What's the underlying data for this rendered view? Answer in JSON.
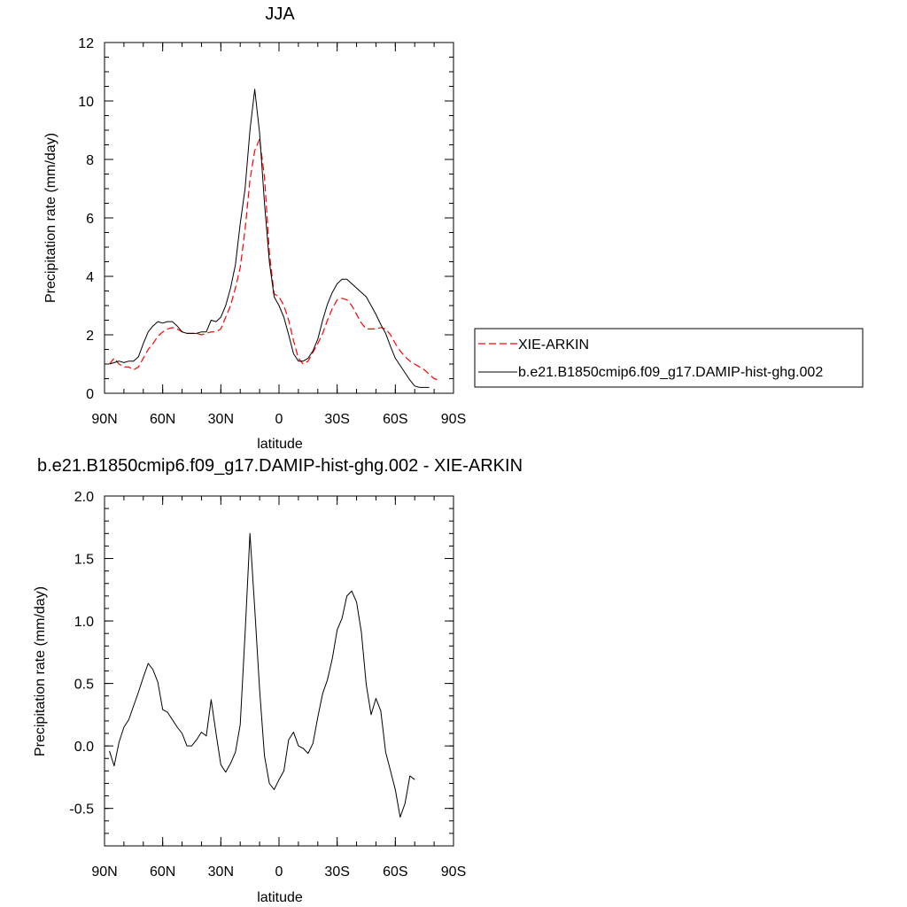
{
  "chart_data": [
    {
      "type": "line",
      "title": "JJA",
      "xlabel": "latitude",
      "ylabel": "Precipitation rate (mm/day)",
      "xlim": [
        90,
        -90
      ],
      "ylim": [
        0,
        12
      ],
      "x_ticks": [
        90,
        60,
        30,
        0,
        -30,
        -60,
        -90
      ],
      "x_tick_labels": [
        "90N",
        "60N",
        "30N",
        "0",
        "30S",
        "60S",
        "90S"
      ],
      "y_ticks": [
        0,
        2,
        4,
        6,
        8,
        10,
        12
      ],
      "y_tick_labels": [
        "0",
        "2",
        "4",
        "6",
        "8",
        "10",
        "12"
      ],
      "grid": false,
      "legend_position": "outside-right",
      "series": [
        {
          "name": "XIE-ARKIN",
          "color": "#ff0000",
          "style": "dashed",
          "points": [
            [
              87.5,
              1.0
            ],
            [
              85,
              1.2
            ],
            [
              82.5,
              1.0
            ],
            [
              80,
              0.9
            ],
            [
              77.5,
              0.9
            ],
            [
              75,
              0.8
            ],
            [
              72.5,
              0.9
            ],
            [
              70,
              1.2
            ],
            [
              67.5,
              1.5
            ],
            [
              65,
              1.7
            ],
            [
              62.5,
              1.95
            ],
            [
              60,
              2.1
            ],
            [
              57.5,
              2.2
            ],
            [
              55,
              2.25
            ],
            [
              52.5,
              2.2
            ],
            [
              50,
              2.1
            ],
            [
              47.5,
              2.05
            ],
            [
              45,
              2.05
            ],
            [
              42.5,
              2.05
            ],
            [
              40,
              2.0
            ],
            [
              37.5,
              2.05
            ],
            [
              35,
              2.1
            ],
            [
              32.5,
              2.1
            ],
            [
              30,
              2.2
            ],
            [
              27.5,
              2.6
            ],
            [
              25,
              3.0
            ],
            [
              22.5,
              3.6
            ],
            [
              20,
              4.3
            ],
            [
              17.5,
              5.6
            ],
            [
              15,
              7.3
            ],
            [
              12.5,
              8.3
            ],
            [
              10,
              8.7
            ],
            [
              7.5,
              7.4
            ],
            [
              5,
              4.8
            ],
            [
              2.5,
              3.4
            ],
            [
              0,
              3.3
            ],
            [
              -2.5,
              3.0
            ],
            [
              -5,
              2.5
            ],
            [
              -7.5,
              1.8
            ],
            [
              -10,
              1.2
            ],
            [
              -12.5,
              1.0
            ],
            [
              -15,
              1.1
            ],
            [
              -17.5,
              1.4
            ],
            [
              -20,
              1.7
            ],
            [
              -22.5,
              2.05
            ],
            [
              -25,
              2.5
            ],
            [
              -27.5,
              2.9
            ],
            [
              -30,
              3.2
            ],
            [
              -32.5,
              3.25
            ],
            [
              -35,
              3.2
            ],
            [
              -37.5,
              3.0
            ],
            [
              -40,
              2.7
            ],
            [
              -42.5,
              2.4
            ],
            [
              -45,
              2.2
            ],
            [
              -47.5,
              2.2
            ],
            [
              -50,
              2.2
            ],
            [
              -52.5,
              2.25
            ],
            [
              -55,
              2.2
            ],
            [
              -57.5,
              2.0
            ],
            [
              -60,
              1.7
            ],
            [
              -62.5,
              1.45
            ],
            [
              -65,
              1.25
            ],
            [
              -67.5,
              1.1
            ],
            [
              -70,
              1.0
            ],
            [
              -72.5,
              0.9
            ],
            [
              -75,
              0.8
            ],
            [
              -77.5,
              0.65
            ],
            [
              -80,
              0.5
            ],
            [
              -82.5,
              0.45
            ]
          ]
        },
        {
          "name": "b.e21.B1850cmip6.f09_g17.DAMIP-hist-ghg.002",
          "color": "#000000",
          "style": "solid",
          "points": [
            [
              87.5,
              1.0
            ],
            [
              85,
              1.05
            ],
            [
              82.5,
              1.1
            ],
            [
              80,
              1.05
            ],
            [
              77.5,
              1.1
            ],
            [
              75,
              1.1
            ],
            [
              72.5,
              1.25
            ],
            [
              70,
              1.7
            ],
            [
              67.5,
              2.1
            ],
            [
              65,
              2.3
            ],
            [
              62.5,
              2.45
            ],
            [
              60,
              2.4
            ],
            [
              57.5,
              2.45
            ],
            [
              55,
              2.45
            ],
            [
              52.5,
              2.3
            ],
            [
              50,
              2.1
            ],
            [
              47.5,
              2.05
            ],
            [
              45,
              2.05
            ],
            [
              42.5,
              2.05
            ],
            [
              40,
              2.1
            ],
            [
              37.5,
              2.1
            ],
            [
              35,
              2.5
            ],
            [
              32.5,
              2.45
            ],
            [
              30,
              2.6
            ],
            [
              27.5,
              3.0
            ],
            [
              25,
              3.6
            ],
            [
              22.5,
              4.4
            ],
            [
              20,
              5.8
            ],
            [
              17.5,
              7.0
            ],
            [
              15,
              9.0
            ],
            [
              12.5,
              10.4
            ],
            [
              10,
              8.9
            ],
            [
              7.5,
              6.5
            ],
            [
              5,
              4.5
            ],
            [
              2.5,
              3.3
            ],
            [
              0,
              3.0
            ],
            [
              -2.5,
              2.6
            ],
            [
              -5,
              2.0
            ],
            [
              -7.5,
              1.35
            ],
            [
              -10,
              1.1
            ],
            [
              -12.5,
              1.1
            ],
            [
              -15,
              1.2
            ],
            [
              -17.5,
              1.45
            ],
            [
              -20,
              1.85
            ],
            [
              -22.5,
              2.5
            ],
            [
              -25,
              3.05
            ],
            [
              -27.5,
              3.45
            ],
            [
              -30,
              3.75
            ],
            [
              -32.5,
              3.9
            ],
            [
              -35,
              3.9
            ],
            [
              -37.5,
              3.75
            ],
            [
              -40,
              3.6
            ],
            [
              -42.5,
              3.45
            ],
            [
              -45,
              3.3
            ],
            [
              -47.5,
              3.0
            ],
            [
              -50,
              2.7
            ],
            [
              -52.5,
              2.35
            ],
            [
              -55,
              2.05
            ],
            [
              -57.5,
              1.6
            ],
            [
              -60,
              1.2
            ],
            [
              -62.5,
              0.95
            ],
            [
              -65,
              0.7
            ],
            [
              -67.5,
              0.45
            ],
            [
              -70,
              0.25
            ],
            [
              -72.5,
              0.2
            ],
            [
              -75,
              0.2
            ],
            [
              -77.5,
              0.2
            ]
          ]
        }
      ]
    },
    {
      "type": "line",
      "title": "b.e21.B1850cmip6.f09_g17.DAMIP-hist-ghg.002 - XIE-ARKIN",
      "xlabel": "latitude",
      "ylabel": "Precipitation rate (mm/day)",
      "xlim": [
        90,
        -90
      ],
      "ylim": [
        -0.8,
        2.0
      ],
      "x_ticks": [
        90,
        60,
        30,
        0,
        -30,
        -60,
        -90
      ],
      "x_tick_labels": [
        "90N",
        "60N",
        "30N",
        "0",
        "30S",
        "60S",
        "90S"
      ],
      "y_ticks": [
        -0.5,
        0.0,
        0.5,
        1.0,
        1.5,
        2.0
      ],
      "y_tick_labels": [
        "-0.5",
        "0.0",
        "0.5",
        "1.0",
        "1.5",
        "2.0"
      ],
      "grid": false,
      "series": [
        {
          "color": "#000000",
          "style": "solid",
          "points": [
            [
              87.5,
              -0.04
            ],
            [
              85,
              -0.16
            ],
            [
              82.5,
              0.03
            ],
            [
              80,
              0.15
            ],
            [
              77.5,
              0.21
            ],
            [
              75,
              0.32
            ],
            [
              72.5,
              0.43
            ],
            [
              70,
              0.55
            ],
            [
              67.5,
              0.66
            ],
            [
              65,
              0.61
            ],
            [
              62.5,
              0.51
            ],
            [
              60,
              0.29
            ],
            [
              57.5,
              0.27
            ],
            [
              55,
              0.21
            ],
            [
              52.5,
              0.15
            ],
            [
              50,
              0.1
            ],
            [
              47.5,
              0.0
            ],
            [
              45,
              0.0
            ],
            [
              42.5,
              0.05
            ],
            [
              40,
              0.11
            ],
            [
              37.5,
              0.08
            ],
            [
              35,
              0.37
            ],
            [
              32.5,
              0.1
            ],
            [
              30,
              -0.15
            ],
            [
              27.5,
              -0.21
            ],
            [
              25,
              -0.14
            ],
            [
              22.5,
              -0.05
            ],
            [
              20,
              0.17
            ],
            [
              17.5,
              0.9
            ],
            [
              15,
              1.7
            ],
            [
              12.5,
              1.1
            ],
            [
              10,
              0.45
            ],
            [
              7.5,
              -0.08
            ],
            [
              5,
              -0.3
            ],
            [
              2.5,
              -0.35
            ],
            [
              0,
              -0.27
            ],
            [
              -2.5,
              -0.2
            ],
            [
              -5,
              0.05
            ],
            [
              -7.5,
              0.11
            ],
            [
              -10,
              0.0
            ],
            [
              -12.5,
              -0.02
            ],
            [
              -15,
              -0.06
            ],
            [
              -17.5,
              0.02
            ],
            [
              -20,
              0.23
            ],
            [
              -22.5,
              0.42
            ],
            [
              -25,
              0.53
            ],
            [
              -27.5,
              0.7
            ],
            [
              -30,
              0.93
            ],
            [
              -32.5,
              1.02
            ],
            [
              -35,
              1.2
            ],
            [
              -37.5,
              1.24
            ],
            [
              -40,
              1.15
            ],
            [
              -42.5,
              0.91
            ],
            [
              -45,
              0.49
            ],
            [
              -47.5,
              0.25
            ],
            [
              -50,
              0.38
            ],
            [
              -52.5,
              0.28
            ],
            [
              -55,
              -0.05
            ],
            [
              -57.5,
              -0.2
            ],
            [
              -60,
              -0.35
            ],
            [
              -62.5,
              -0.57
            ],
            [
              -65,
              -0.46
            ],
            [
              -67.5,
              -0.24
            ],
            [
              -70,
              -0.27
            ]
          ]
        }
      ]
    }
  ]
}
